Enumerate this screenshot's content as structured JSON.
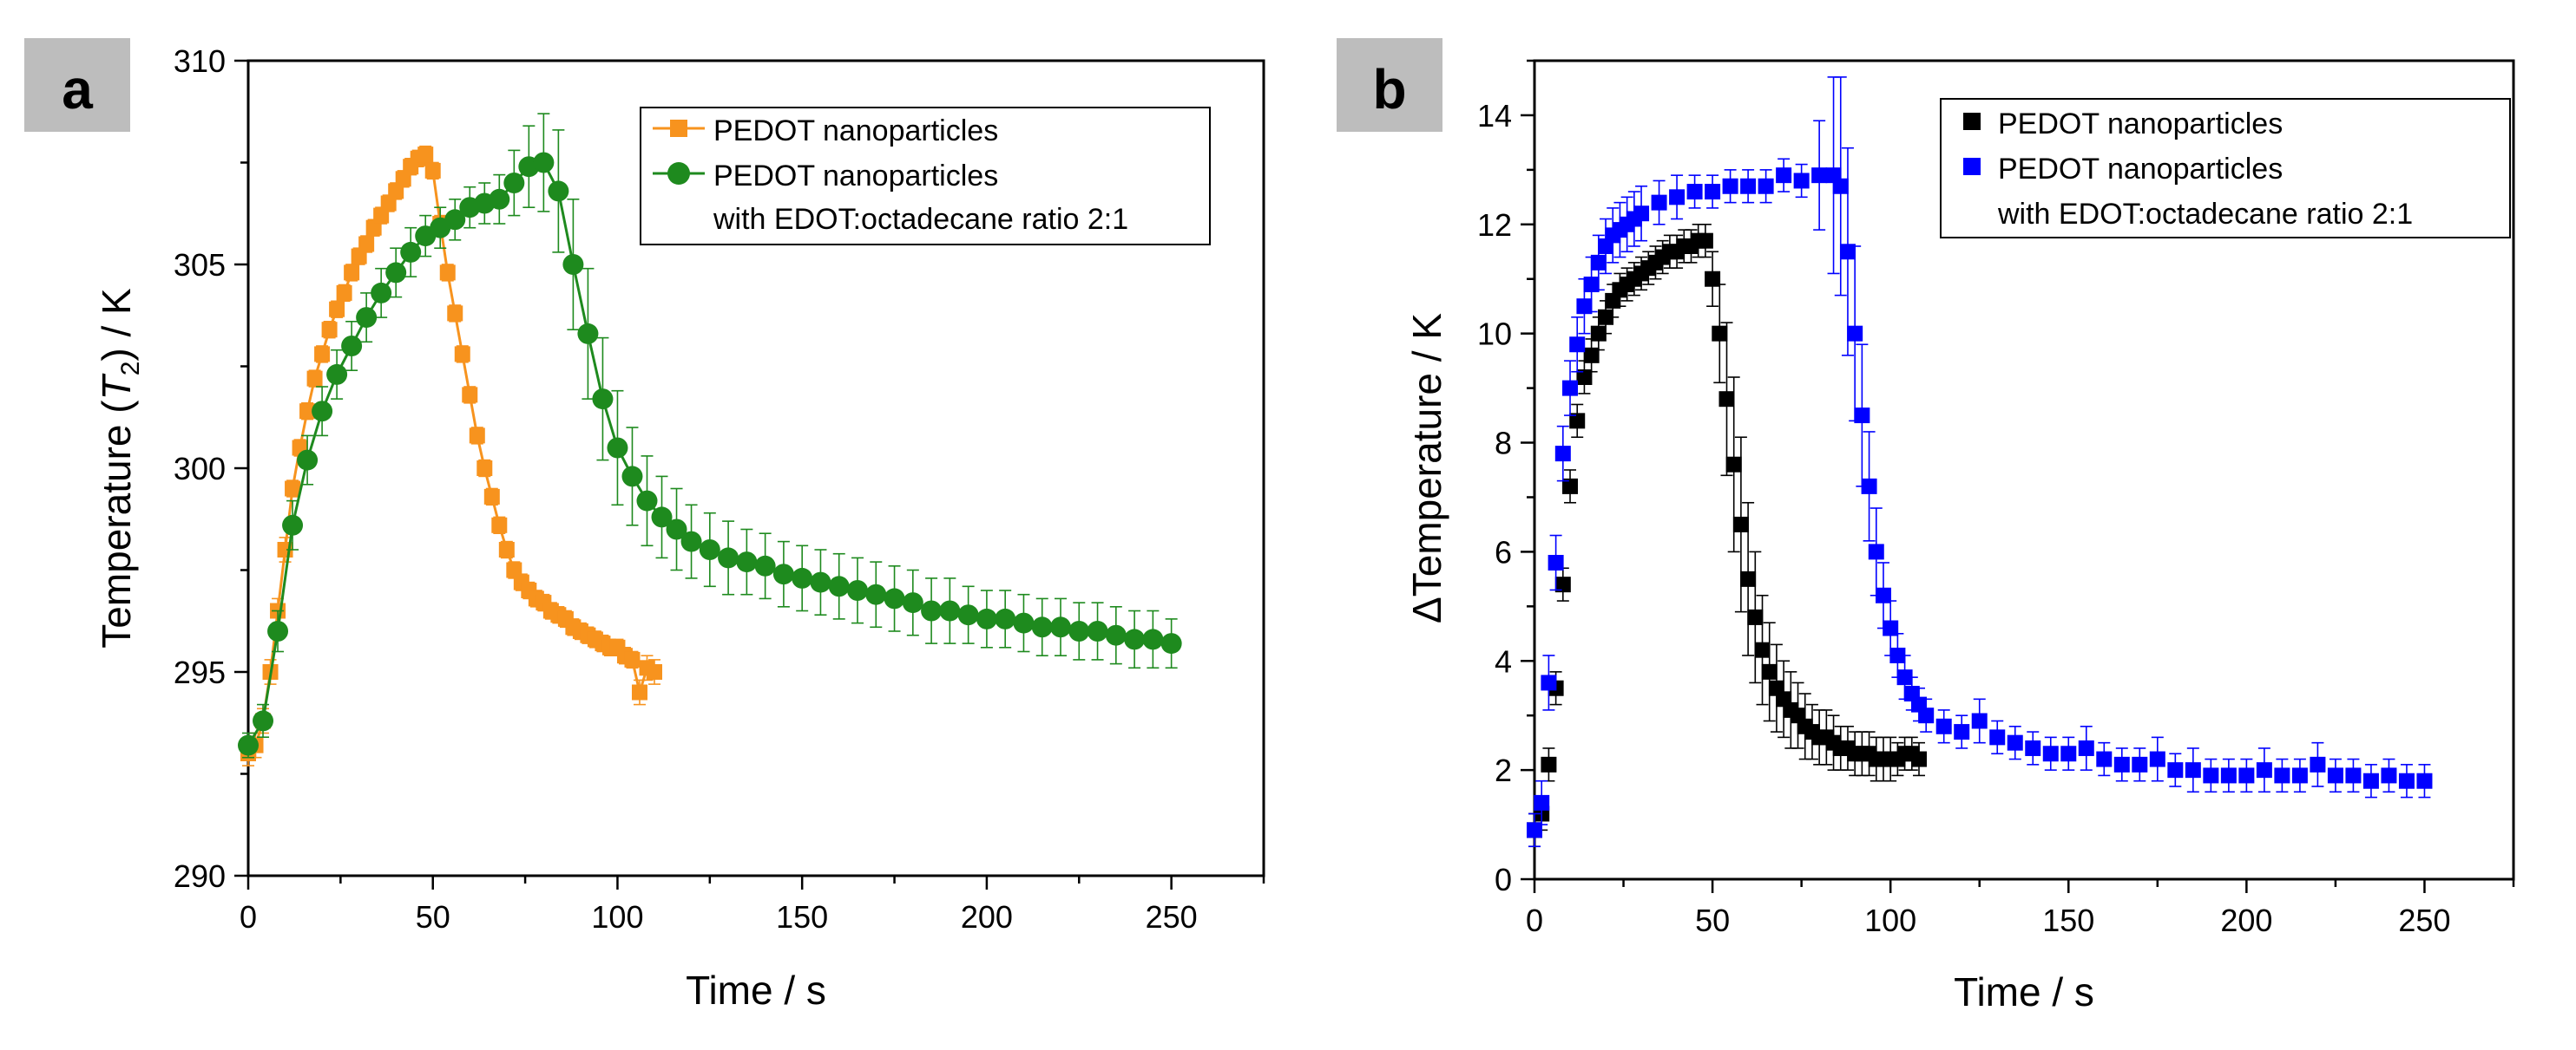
{
  "figure": {
    "panels": [
      {
        "panel_label": "a",
        "ylabel_main": "Temperature (",
        "ylabel_var": "T",
        "ylabel_sub": "2",
        "ylabel_tail": ") / K",
        "xlabel": "Time / s",
        "legend": {
          "line1": "PEDOT nanoparticles",
          "line2": "PEDOT nanoparticles",
          "line3": "with EDOT:octadecane ratio 2:1"
        }
      },
      {
        "panel_label": "b",
        "ylabel": "ΔTemperature / K",
        "xlabel": "Time / s",
        "legend": {
          "line1": "PEDOT nanoparticles",
          "line2": "PEDOT nanoparticles",
          "line3": "with EDOT:octadecane ratio 2:1"
        }
      }
    ]
  },
  "chart_data": [
    {
      "type": "scatter",
      "title": "",
      "panel": "a",
      "xlabel": "Time / s",
      "ylabel": "Temperature (T2) / K",
      "xlim": [
        0,
        275
      ],
      "ylim": [
        290,
        310
      ],
      "xticks": [
        0,
        50,
        100,
        150,
        200,
        250
      ],
      "yticks": [
        290,
        295,
        300,
        305,
        310
      ],
      "legend_position": "top-right",
      "series": [
        {
          "name": "PEDOT nanoparticles",
          "color": "#f7931e",
          "marker": "square",
          "line": true,
          "x": [
            0,
            2,
            4,
            6,
            8,
            10,
            12,
            14,
            16,
            18,
            20,
            22,
            24,
            26,
            28,
            30,
            32,
            34,
            36,
            38,
            40,
            42,
            44,
            46,
            48,
            50,
            52,
            54,
            56,
            58,
            60,
            62,
            64,
            66,
            68,
            70,
            72,
            74,
            76,
            78,
            80,
            82,
            84,
            86,
            88,
            90,
            92,
            94,
            96,
            98,
            100,
            102,
            104,
            106,
            108,
            110
          ],
          "y": [
            293.0,
            293.2,
            293.8,
            295.0,
            296.5,
            298.0,
            299.5,
            300.5,
            301.4,
            302.2,
            302.8,
            303.4,
            303.9,
            304.3,
            304.8,
            305.2,
            305.5,
            305.9,
            306.2,
            306.5,
            306.8,
            307.1,
            307.4,
            307.6,
            307.7,
            307.3,
            306.0,
            304.8,
            303.8,
            302.8,
            301.8,
            300.8,
            300.0,
            299.3,
            298.6,
            298.0,
            297.5,
            297.2,
            297.0,
            296.8,
            296.7,
            296.5,
            296.4,
            296.3,
            296.1,
            296.0,
            295.9,
            295.8,
            295.7,
            295.6,
            295.6,
            295.4,
            295.3,
            294.5,
            295.1,
            295.0
          ],
          "err": [
            0.3,
            0.3,
            0.3,
            0.3,
            0.3,
            0.3,
            0.2,
            0.2,
            0.2,
            0.2,
            0.2,
            0.2,
            0.2,
            0.2,
            0.2,
            0.2,
            0.2,
            0.2,
            0.2,
            0.2,
            0.2,
            0.2,
            0.2,
            0.2,
            0.2,
            0.2,
            0.2,
            0.2,
            0.2,
            0.2,
            0.2,
            0.2,
            0.2,
            0.2,
            0.2,
            0.2,
            0.2,
            0.2,
            0.2,
            0.2,
            0.2,
            0.2,
            0.2,
            0.2,
            0.2,
            0.2,
            0.2,
            0.2,
            0.2,
            0.2,
            0.2,
            0.2,
            0.2,
            0.3,
            0.3,
            0.3
          ]
        },
        {
          "name": "PEDOT nanoparticles with EDOT:octadecane ratio 2:1",
          "color": "#1e8a1e",
          "marker": "circle",
          "line": true,
          "x": [
            0,
            4,
            8,
            12,
            16,
            20,
            24,
            28,
            32,
            36,
            40,
            44,
            48,
            52,
            56,
            60,
            64,
            68,
            72,
            76,
            80,
            84,
            88,
            92,
            96,
            100,
            104,
            108,
            112,
            116,
            120,
            125,
            130,
            135,
            140,
            145,
            150,
            155,
            160,
            165,
            170,
            175,
            180,
            185,
            190,
            195,
            200,
            205,
            210,
            215,
            220,
            225,
            230,
            235,
            240,
            245,
            250
          ],
          "y": [
            293.2,
            293.8,
            296.0,
            298.6,
            300.2,
            301.4,
            302.3,
            303.0,
            303.7,
            304.3,
            304.8,
            305.3,
            305.7,
            305.9,
            306.1,
            306.4,
            306.5,
            306.6,
            307.0,
            307.4,
            307.5,
            306.8,
            305.0,
            303.3,
            301.7,
            300.5,
            299.8,
            299.2,
            298.8,
            298.5,
            298.2,
            298.0,
            297.8,
            297.7,
            297.6,
            297.4,
            297.3,
            297.2,
            297.1,
            297.0,
            296.9,
            296.8,
            296.7,
            296.5,
            296.5,
            296.4,
            296.3,
            296.3,
            296.2,
            296.1,
            296.1,
            296.0,
            296.0,
            295.9,
            295.8,
            295.8,
            295.7
          ],
          "err": [
            0.3,
            0.4,
            0.5,
            0.6,
            0.6,
            0.6,
            0.6,
            0.6,
            0.6,
            0.6,
            0.6,
            0.6,
            0.5,
            0.5,
            0.5,
            0.5,
            0.5,
            0.6,
            0.8,
            1.0,
            1.2,
            1.5,
            1.6,
            1.6,
            1.5,
            1.4,
            1.2,
            1.1,
            1.0,
            1.0,
            0.9,
            0.9,
            0.9,
            0.8,
            0.8,
            0.8,
            0.8,
            0.8,
            0.8,
            0.8,
            0.8,
            0.8,
            0.8,
            0.8,
            0.8,
            0.7,
            0.7,
            0.7,
            0.7,
            0.7,
            0.7,
            0.7,
            0.7,
            0.7,
            0.7,
            0.7,
            0.6
          ]
        }
      ]
    },
    {
      "type": "scatter",
      "title": "",
      "panel": "b",
      "xlabel": "Time / s",
      "ylabel": "ΔTemperature / K",
      "xlim": [
        0,
        275
      ],
      "ylim": [
        0,
        15
      ],
      "xticks": [
        0,
        50,
        100,
        150,
        200,
        250
      ],
      "yticks": [
        0,
        2,
        4,
        6,
        8,
        10,
        12,
        14
      ],
      "legend_position": "top-right",
      "series": [
        {
          "name": "PEDOT nanoparticles",
          "color": "#000000",
          "marker": "square",
          "line": false,
          "x": [
            0,
            2,
            4,
            6,
            8,
            10,
            12,
            14,
            16,
            18,
            20,
            22,
            24,
            26,
            28,
            30,
            32,
            34,
            36,
            38,
            40,
            42,
            44,
            46,
            48,
            50,
            52,
            54,
            56,
            58,
            60,
            62,
            64,
            66,
            68,
            70,
            72,
            74,
            76,
            78,
            80,
            82,
            84,
            86,
            88,
            90,
            92,
            94,
            96,
            98,
            100,
            102,
            104,
            106,
            108
          ],
          "y": [
            0.9,
            1.2,
            2.1,
            3.5,
            5.4,
            7.2,
            8.4,
            9.2,
            9.6,
            10.0,
            10.3,
            10.6,
            10.8,
            10.9,
            11.0,
            11.1,
            11.2,
            11.3,
            11.4,
            11.5,
            11.5,
            11.6,
            11.6,
            11.7,
            11.7,
            11.0,
            10.0,
            8.8,
            7.6,
            6.5,
            5.5,
            4.8,
            4.2,
            3.8,
            3.5,
            3.3,
            3.1,
            3.0,
            2.8,
            2.7,
            2.6,
            2.6,
            2.5,
            2.4,
            2.4,
            2.3,
            2.3,
            2.3,
            2.2,
            2.2,
            2.2,
            2.2,
            2.3,
            2.3,
            2.2
          ],
          "err": [
            0.3,
            0.3,
            0.3,
            0.3,
            0.3,
            0.3,
            0.3,
            0.3,
            0.3,
            0.3,
            0.3,
            0.3,
            0.3,
            0.3,
            0.3,
            0.3,
            0.3,
            0.3,
            0.3,
            0.3,
            0.3,
            0.3,
            0.3,
            0.3,
            0.3,
            0.5,
            0.9,
            1.4,
            1.6,
            1.6,
            1.4,
            1.2,
            1.0,
            0.9,
            0.8,
            0.7,
            0.7,
            0.6,
            0.6,
            0.5,
            0.5,
            0.5,
            0.5,
            0.4,
            0.4,
            0.4,
            0.4,
            0.4,
            0.4,
            0.4,
            0.4,
            0.3,
            0.3,
            0.3,
            0.3
          ]
        },
        {
          "name": "PEDOT nanoparticles with EDOT:octadecane ratio 2:1",
          "color": "#0000ff",
          "marker": "square",
          "line": false,
          "x": [
            0,
            2,
            4,
            6,
            8,
            10,
            12,
            14,
            16,
            18,
            20,
            22,
            24,
            26,
            28,
            30,
            35,
            40,
            45,
            50,
            55,
            60,
            65,
            70,
            75,
            80,
            84,
            86,
            88,
            90,
            92,
            94,
            96,
            98,
            100,
            102,
            104,
            106,
            108,
            110,
            115,
            120,
            125,
            130,
            135,
            140,
            145,
            150,
            155,
            160,
            165,
            170,
            175,
            180,
            185,
            190,
            195,
            200,
            205,
            210,
            215,
            220,
            225,
            230,
            235,
            240,
            245,
            250
          ],
          "y": [
            0.9,
            1.4,
            3.6,
            5.8,
            7.8,
            9.0,
            9.8,
            10.5,
            10.9,
            11.3,
            11.6,
            11.8,
            11.9,
            12.0,
            12.1,
            12.2,
            12.4,
            12.5,
            12.6,
            12.6,
            12.7,
            12.7,
            12.7,
            12.9,
            12.8,
            12.9,
            12.9,
            12.7,
            11.5,
            10.0,
            8.5,
            7.2,
            6.0,
            5.2,
            4.6,
            4.1,
            3.7,
            3.4,
            3.2,
            3.0,
            2.8,
            2.7,
            2.9,
            2.6,
            2.5,
            2.4,
            2.3,
            2.3,
            2.4,
            2.2,
            2.1,
            2.1,
            2.2,
            2.0,
            2.0,
            1.9,
            1.9,
            1.9,
            2.0,
            1.9,
            1.9,
            2.1,
            1.9,
            1.9,
            1.8,
            1.9,
            1.8,
            1.8
          ],
          "err": [
            0.3,
            0.4,
            0.5,
            0.5,
            0.5,
            0.5,
            0.5,
            0.5,
            0.5,
            0.5,
            0.5,
            0.5,
            0.5,
            0.5,
            0.5,
            0.5,
            0.4,
            0.4,
            0.3,
            0.3,
            0.3,
            0.3,
            0.3,
            0.3,
            0.3,
            1.0,
            1.8,
            2.0,
            1.9,
            1.6,
            1.3,
            1.0,
            0.8,
            0.6,
            0.5,
            0.4,
            0.4,
            0.3,
            0.3,
            0.3,
            0.3,
            0.3,
            0.4,
            0.3,
            0.3,
            0.3,
            0.3,
            0.3,
            0.4,
            0.3,
            0.3,
            0.3,
            0.4,
            0.3,
            0.4,
            0.3,
            0.3,
            0.3,
            0.4,
            0.3,
            0.3,
            0.4,
            0.3,
            0.3,
            0.3,
            0.3,
            0.3,
            0.3
          ]
        }
      ]
    }
  ]
}
